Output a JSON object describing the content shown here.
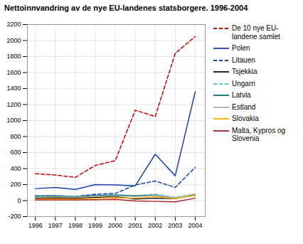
{
  "chart_data": {
    "type": "line",
    "title": "Nettoinnvandring av de nye EU-landenes statsborgere. 1996-2004",
    "x": [
      1996,
      1997,
      1998,
      1999,
      2000,
      2001,
      2002,
      2003,
      2004
    ],
    "series": [
      {
        "name": "De 10 nye EU-\nlandene samlet",
        "color": "#cc0000",
        "line_style": "dashed",
        "values": [
          335,
          320,
          290,
          440,
          500,
          1130,
          1050,
          1840,
          2050
        ]
      },
      {
        "name": "Polen",
        "color": "#1a44aa",
        "line_style": "solid",
        "values": [
          150,
          165,
          140,
          200,
          195,
          185,
          580,
          310,
          1360
        ]
      },
      {
        "name": "Litauen",
        "color": "#1a44aa",
        "line_style": "dashed",
        "values": [
          60,
          60,
          50,
          80,
          90,
          195,
          245,
          165,
          415
        ]
      },
      {
        "name": "Tsjekkia",
        "color": "#111111",
        "line_style": "solid",
        "values": [
          30,
          35,
          30,
          40,
          50,
          20,
          30,
          25,
          80
        ]
      },
      {
        "name": "Ungarn",
        "color": "#55cccc",
        "line_style": "dashed",
        "values": [
          50,
          55,
          45,
          65,
          75,
          60,
          80,
          40,
          80
        ]
      },
      {
        "name": "Latvia",
        "color": "#007777",
        "line_style": "solid",
        "values": [
          55,
          60,
          50,
          65,
          70,
          60,
          70,
          30,
          65
        ]
      },
      {
        "name": "Estland",
        "color": "#aaaaaa",
        "line_style": "solid",
        "values": [
          45,
          50,
          42,
          55,
          60,
          50,
          65,
          35,
          65
        ]
      },
      {
        "name": "Slovakia",
        "color": "#ffaa00",
        "line_style": "solid",
        "values": [
          20,
          22,
          18,
          30,
          35,
          30,
          50,
          25,
          75
        ]
      },
      {
        "name": "Malta, Kypros og\nSlovenia",
        "color": "#aa2222",
        "line_style": "solid",
        "values": [
          10,
          10,
          8,
          12,
          15,
          -5,
          -10,
          -15,
          30
        ]
      }
    ],
    "xlim": [
      1995.6,
      2004.5
    ],
    "xticks": [
      1996,
      1997,
      1998,
      1999,
      2000,
      2001,
      2002,
      2003,
      2004
    ],
    "ylim": [
      -200,
      2200
    ],
    "yticks": [
      -200,
      0,
      200,
      400,
      600,
      800,
      1000,
      1200,
      1400,
      1600,
      1800,
      2000,
      2200
    ],
    "grid": true,
    "legend": "right"
  }
}
